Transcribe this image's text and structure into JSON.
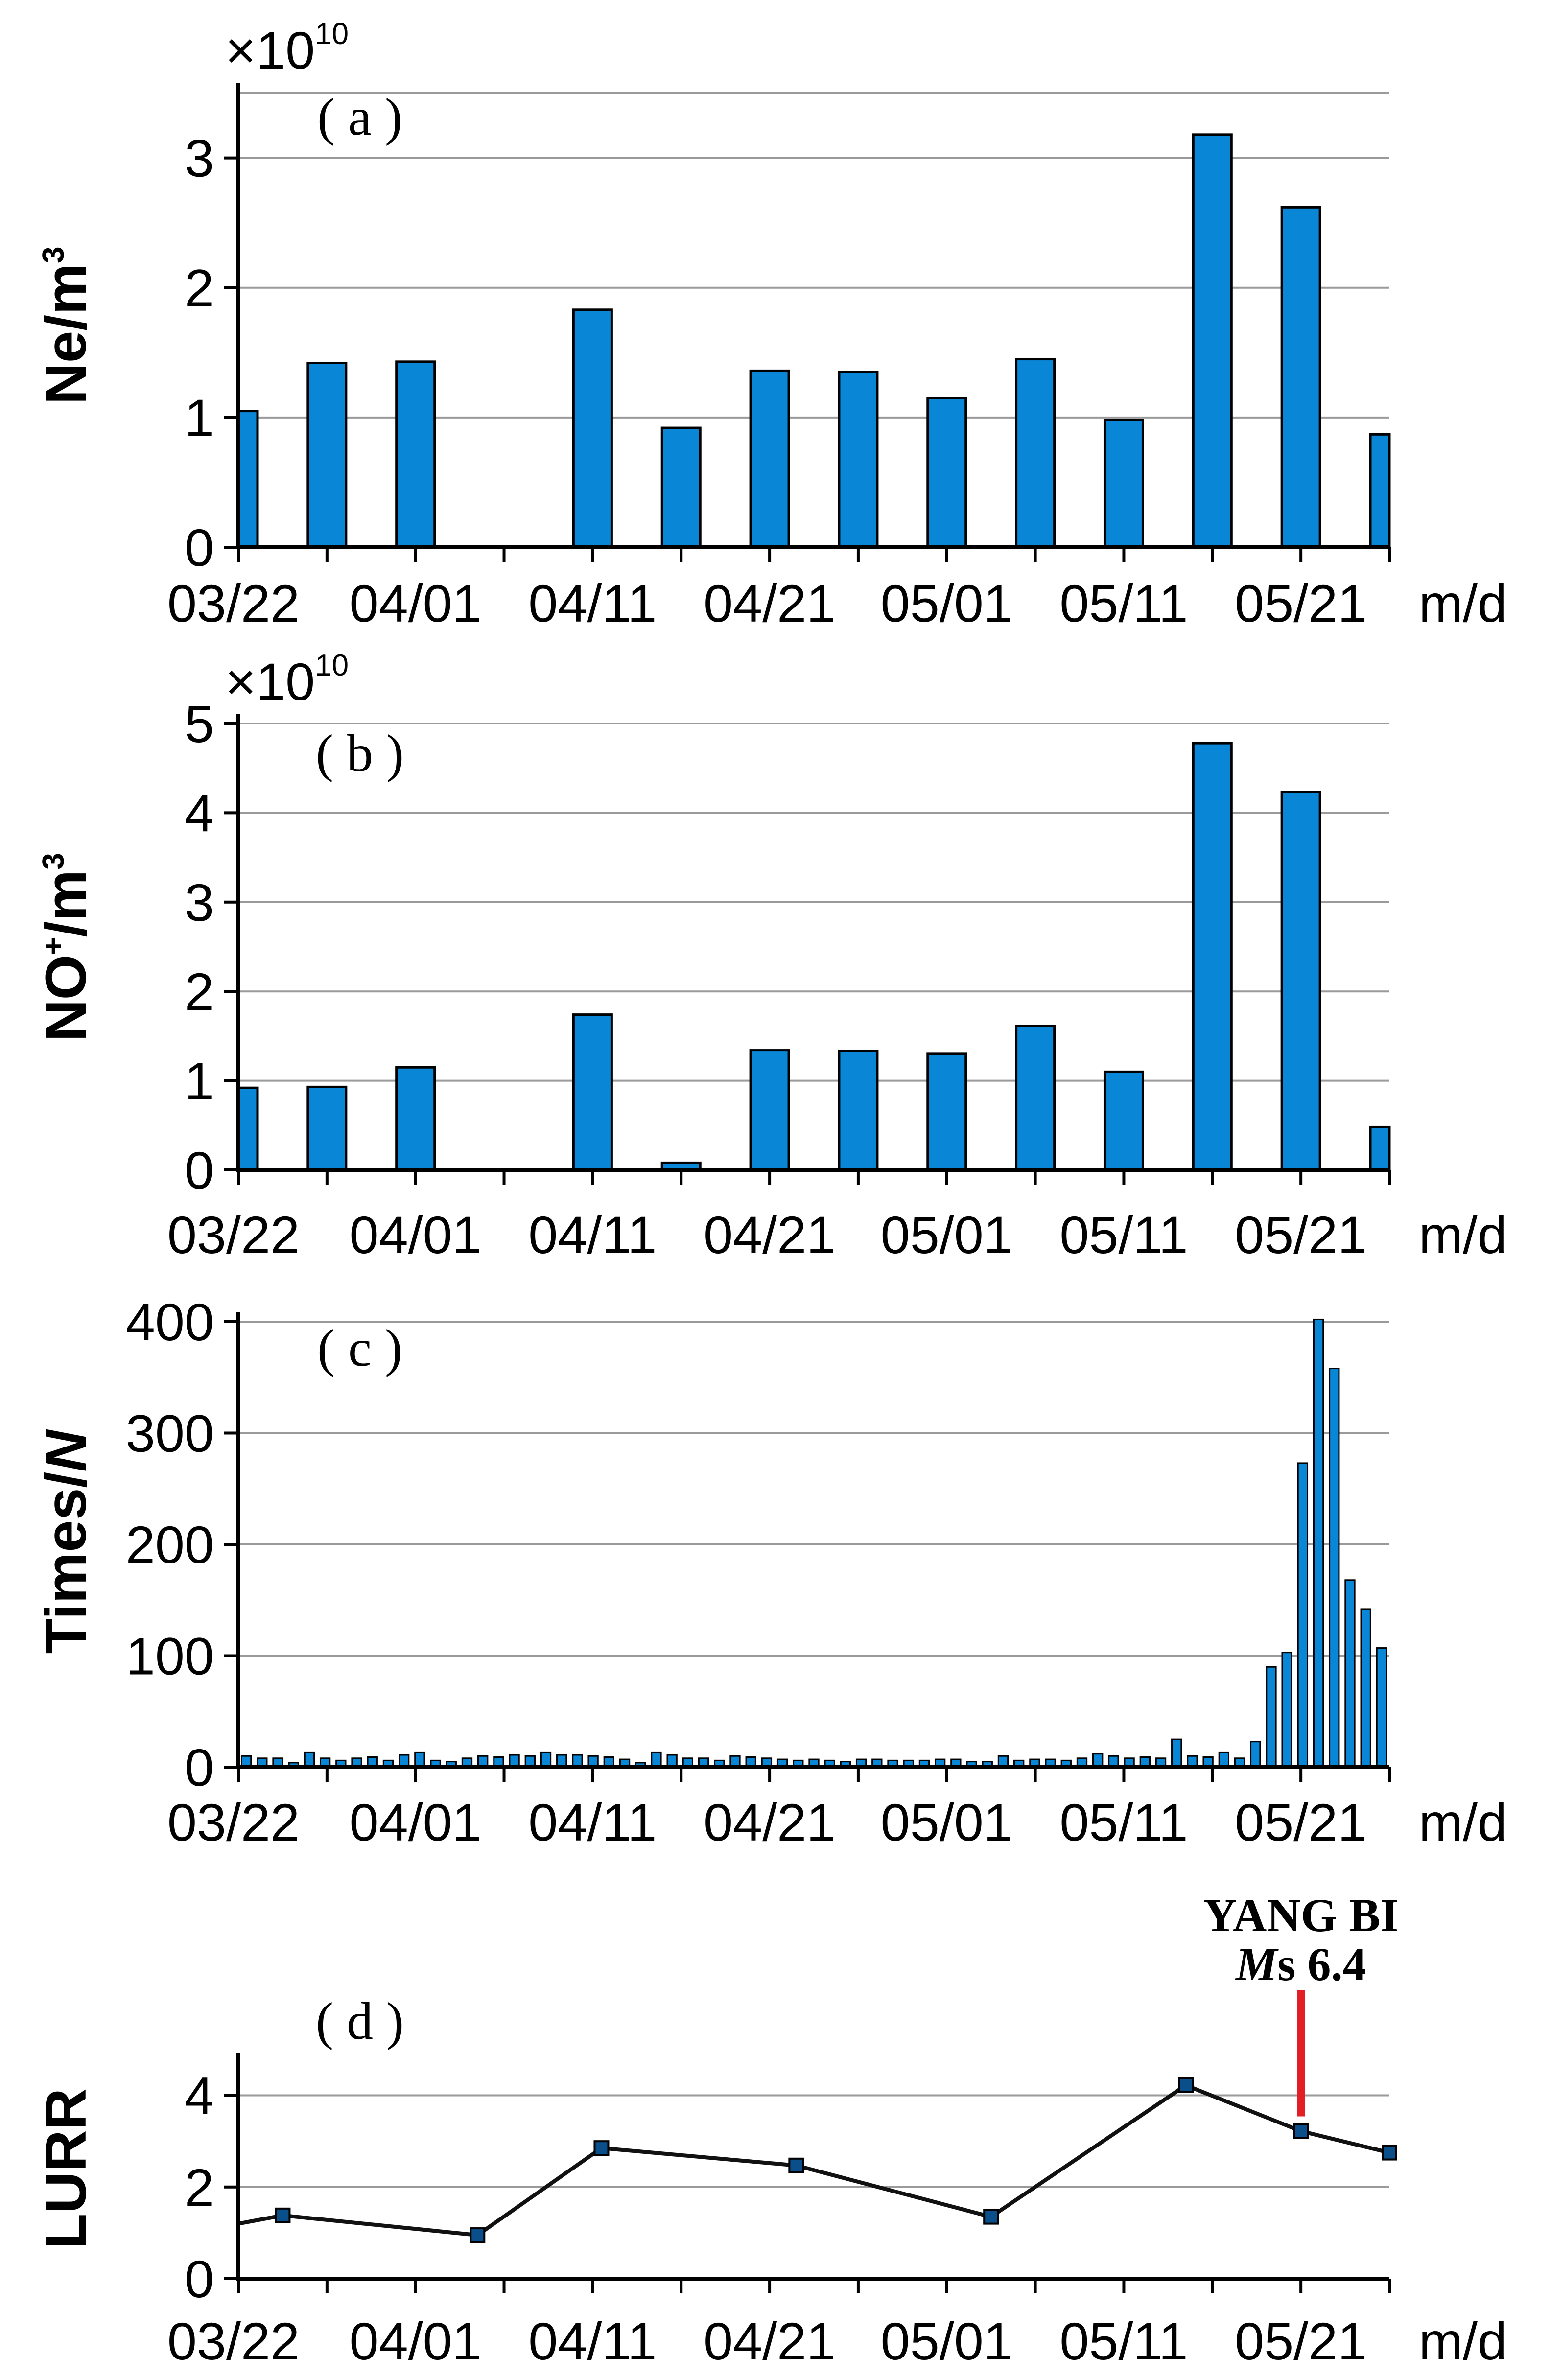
{
  "chart_data": [
    {
      "id": "a",
      "type": "bar",
      "panel_label": "( a )",
      "ylabel": "Ne/m",
      "ylabel_sup": "3",
      "y_multiplier": "×10",
      "y_multiplier_exp": "10",
      "ylim": [
        0,
        3.5
      ],
      "yticks": [
        0,
        1,
        2,
        3
      ],
      "xlabels": [
        "03/22",
        "04/01",
        "04/11",
        "04/21",
        "05/01",
        "05/11",
        "05/21"
      ],
      "xunit": "m/d",
      "day_range": [
        0,
        65
      ],
      "bars": [
        {
          "day": 0,
          "value": 1.05
        },
        {
          "day": 5,
          "value": 1.42
        },
        {
          "day": 10,
          "value": 1.43
        },
        {
          "day": 20,
          "value": 1.83
        },
        {
          "day": 25,
          "value": 0.92
        },
        {
          "day": 30,
          "value": 1.36
        },
        {
          "day": 35,
          "value": 1.35
        },
        {
          "day": 40,
          "value": 1.15
        },
        {
          "day": 45,
          "value": 1.45
        },
        {
          "day": 50,
          "value": 0.98
        },
        {
          "day": 55,
          "value": 3.18
        },
        {
          "day": 60,
          "value": 2.62
        },
        {
          "day": 65,
          "value": 0.87
        }
      ],
      "bar_color": "#0a86d6"
    },
    {
      "id": "b",
      "type": "bar",
      "panel_label": "( b )",
      "ylabel": "NO",
      "ylabel_sup": "+",
      "ylabel_rest": "/m",
      "ylabel_sup2": "3",
      "y_multiplier": "×10",
      "y_multiplier_exp": "10",
      "ylim": [
        0,
        5
      ],
      "yticks": [
        0,
        1,
        2,
        3,
        4,
        5
      ],
      "xlabels": [
        "03/22",
        "04/01",
        "04/11",
        "04/21",
        "05/01",
        "05/11",
        "05/21"
      ],
      "xunit": "m/d",
      "day_range": [
        0,
        65
      ],
      "bars": [
        {
          "day": 0,
          "value": 0.92
        },
        {
          "day": 5,
          "value": 0.93
        },
        {
          "day": 10,
          "value": 1.15
        },
        {
          "day": 20,
          "value": 1.74
        },
        {
          "day": 25,
          "value": 0.08
        },
        {
          "day": 30,
          "value": 1.34
        },
        {
          "day": 35,
          "value": 1.33
        },
        {
          "day": 40,
          "value": 1.3
        },
        {
          "day": 45,
          "value": 1.61
        },
        {
          "day": 50,
          "value": 1.1
        },
        {
          "day": 55,
          "value": 4.78
        },
        {
          "day": 60,
          "value": 4.23
        },
        {
          "day": 65,
          "value": 0.48
        }
      ],
      "bar_color": "#0a86d6"
    },
    {
      "id": "c",
      "type": "bar",
      "panel_label": "( c )",
      "ylabel": "Times/",
      "ylabel_italic": "N",
      "ylim": [
        0,
        400
      ],
      "yticks": [
        0,
        100,
        200,
        300,
        400
      ],
      "xlabels": [
        "03/22",
        "04/01",
        "04/11",
        "04/21",
        "05/01",
        "05/11",
        "05/21"
      ],
      "xunit": "m/d",
      "day_range": [
        0,
        65
      ],
      "bar_color": "#0a86d6",
      "values": [
        10,
        8,
        8,
        4,
        13,
        8,
        6,
        8,
        9,
        6,
        11,
        13,
        6,
        5,
        8,
        10,
        9,
        11,
        10,
        13,
        11,
        11,
        10,
        9,
        7,
        4,
        13,
        11,
        8,
        8,
        6,
        10,
        9,
        8,
        7,
        6,
        7,
        6,
        5,
        7,
        7,
        6,
        6,
        6,
        7,
        7,
        5,
        5,
        10,
        6,
        7,
        7,
        6,
        8,
        12,
        10,
        8,
        9,
        8,
        25,
        10,
        9,
        13,
        8,
        23,
        90,
        103,
        273,
        402,
        358,
        168,
        142,
        107
      ]
    },
    {
      "id": "d",
      "type": "line",
      "panel_label": "( d )",
      "ylabel": "LURR",
      "ylim": [
        0,
        4.7
      ],
      "yticks": [
        0,
        2,
        4
      ],
      "xlabels": [
        "03/22",
        "04/01",
        "04/11",
        "04/21",
        "05/01",
        "05/11",
        "05/21"
      ],
      "xunit": "m/d",
      "day_range": [
        0,
        65
      ],
      "points": [
        {
          "day": 0,
          "value": 1.2,
          "marker": false
        },
        {
          "day": 2.5,
          "value": 1.38,
          "marker": true
        },
        {
          "day": 13.5,
          "value": 0.95,
          "marker": true
        },
        {
          "day": 20.5,
          "value": 2.85,
          "marker": true
        },
        {
          "day": 31.5,
          "value": 2.47,
          "marker": true
        },
        {
          "day": 42.5,
          "value": 1.35,
          "marker": true
        },
        {
          "day": 53.5,
          "value": 4.22,
          "marker": true
        },
        {
          "day": 60,
          "value": 3.22,
          "marker": true
        },
        {
          "day": 65,
          "value": 2.75,
          "marker": true
        }
      ],
      "annotation": {
        "line1": "YANG BI",
        "line2_italic": "M",
        "line2_rest": "s 6.4",
        "day": 60,
        "color": "#e31e24"
      }
    }
  ]
}
